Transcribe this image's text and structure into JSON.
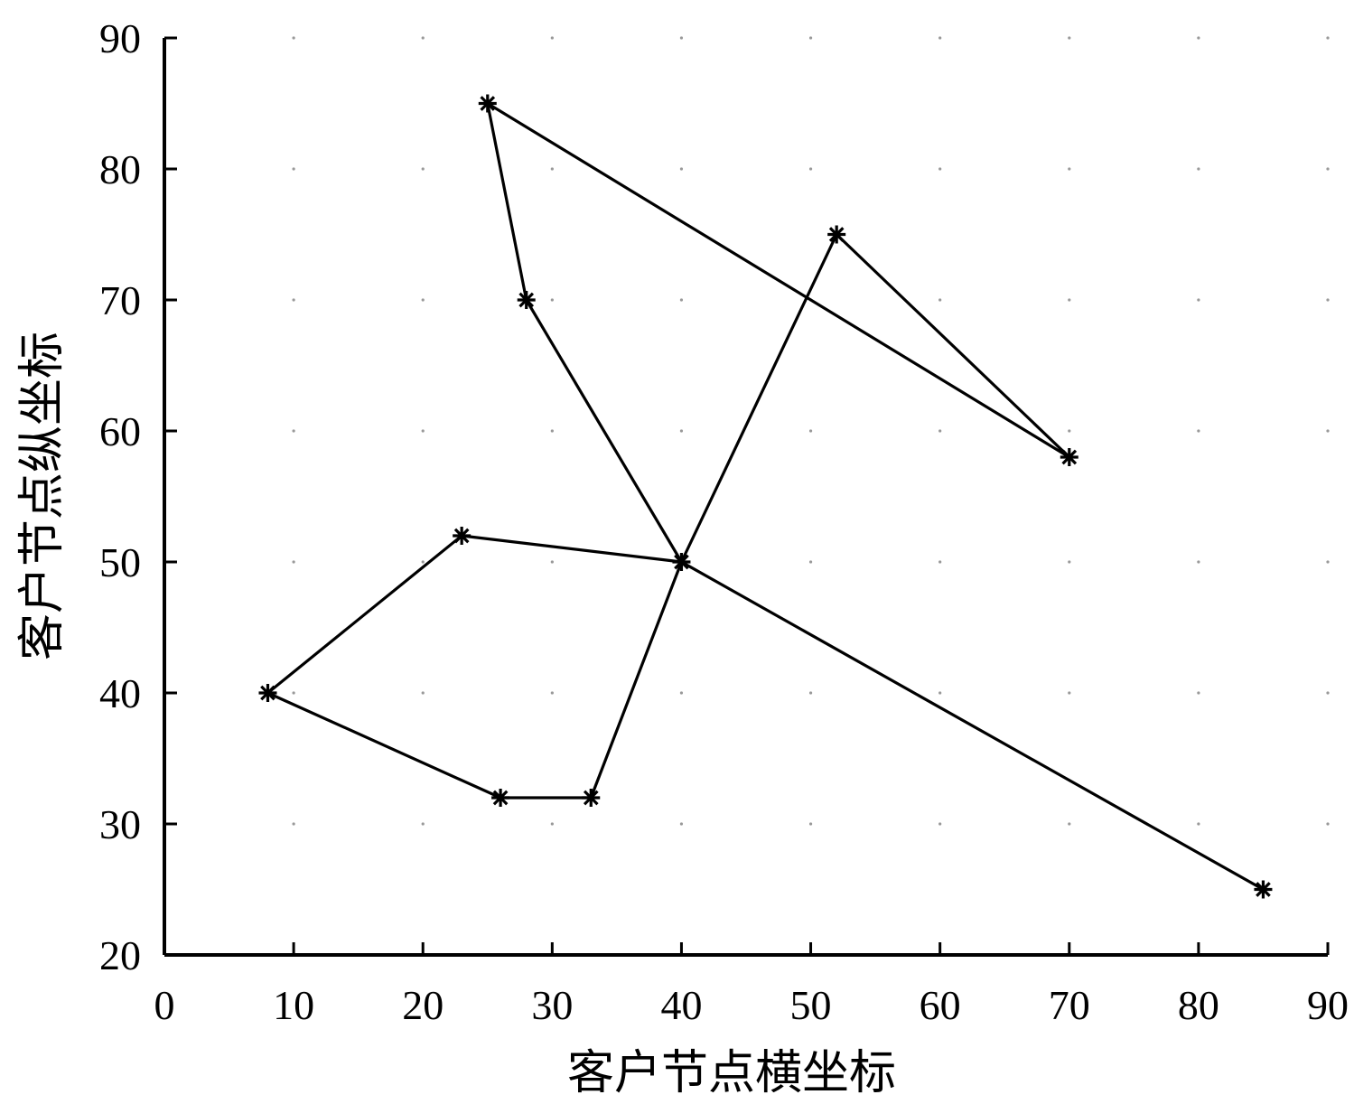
{
  "chart_data": {
    "type": "line",
    "title": "",
    "xlabel": "客户节点横坐标",
    "ylabel": "客户节点纵坐标",
    "xlim": [
      0,
      90
    ],
    "ylim": [
      20,
      90
    ],
    "xticks": [
      0,
      10,
      20,
      30,
      40,
      50,
      60,
      70,
      80,
      90
    ],
    "yticks": [
      20,
      30,
      40,
      50,
      60,
      70,
      80,
      90
    ],
    "grid": "dotted",
    "marker": "asterisk",
    "series": [
      {
        "x": [
          40,
          23,
          8,
          26,
          33,
          40,
          52,
          70,
          25,
          28,
          40,
          85
        ],
        "y": [
          50,
          52,
          40,
          32,
          32,
          50,
          75,
          58,
          85,
          70,
          50,
          25
        ]
      }
    ]
  }
}
